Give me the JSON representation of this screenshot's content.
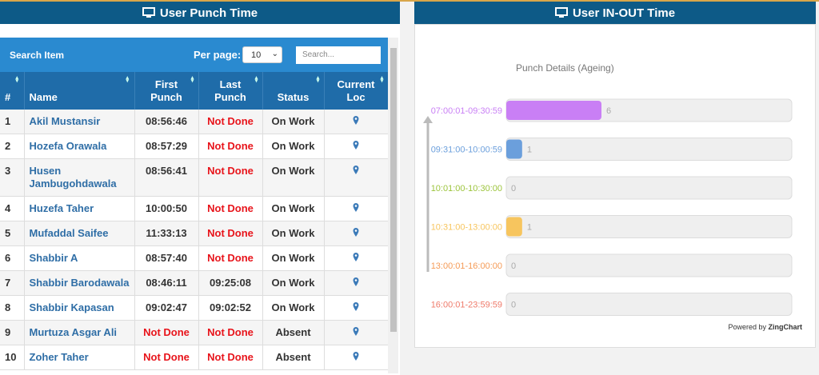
{
  "left_panel": {
    "title": "User Punch Time",
    "search_label": "Search Item",
    "per_page_label": "Per page:",
    "per_page": "10",
    "search_placeholder": "Search..."
  },
  "table": {
    "columns": [
      "#",
      "Name",
      "First Punch",
      "Last Punch",
      "Status",
      "Current Loc"
    ],
    "rows": [
      [
        "1",
        "Akil Mustansir",
        "08:56:46",
        "Not Done",
        "On Work"
      ],
      [
        "2",
        "Hozefa Orawala",
        "08:57:29",
        "Not Done",
        "On Work"
      ],
      [
        "3",
        "Husen Jambugohdawala",
        "08:56:41",
        "Not Done",
        "On Work"
      ],
      [
        "4",
        "Huzefa Taher",
        "10:00:50",
        "Not Done",
        "On Work"
      ],
      [
        "5",
        "Mufaddal Saifee",
        "11:33:13",
        "Not Done",
        "On Work"
      ],
      [
        "6",
        "Shabbir A",
        "08:57:40",
        "Not Done",
        "On Work"
      ],
      [
        "7",
        "Shabbir Barodawala",
        "08:46:11",
        "09:25:08",
        "On Work"
      ],
      [
        "8",
        "Shabbir Kapasan",
        "09:02:47",
        "09:02:52",
        "On Work"
      ],
      [
        "9",
        "Murtuza Asgar Ali",
        "Not Done",
        "Not Done",
        "Absent"
      ],
      [
        "10",
        "Zoher Taher",
        "Not Done",
        "Not Done",
        "Absent"
      ]
    ]
  },
  "right_panel": {
    "title": "User IN-OUT Time",
    "chart_data": {
      "type": "bar",
      "orientation": "horizontal",
      "title": "Punch Details (Ageing)",
      "categories": [
        "07:00:01-09:30:59",
        "09:31:00-10:00:59",
        "10:01:00-10:30:00",
        "10:31:00-13:00:00",
        "13:00:01-16:00:00",
        "16:00:01-23:59:59"
      ],
      "values": [
        6,
        1,
        0,
        1,
        0,
        0
      ],
      "colors": [
        "#c97ff5",
        "#6b9fdc",
        "#9cc43c",
        "#f7c55e",
        "#f59a55",
        "#ef7a6a"
      ],
      "xlim": [
        0,
        18
      ],
      "credit_prefix": "Powered by",
      "credit_brand": "ZingChart"
    }
  }
}
